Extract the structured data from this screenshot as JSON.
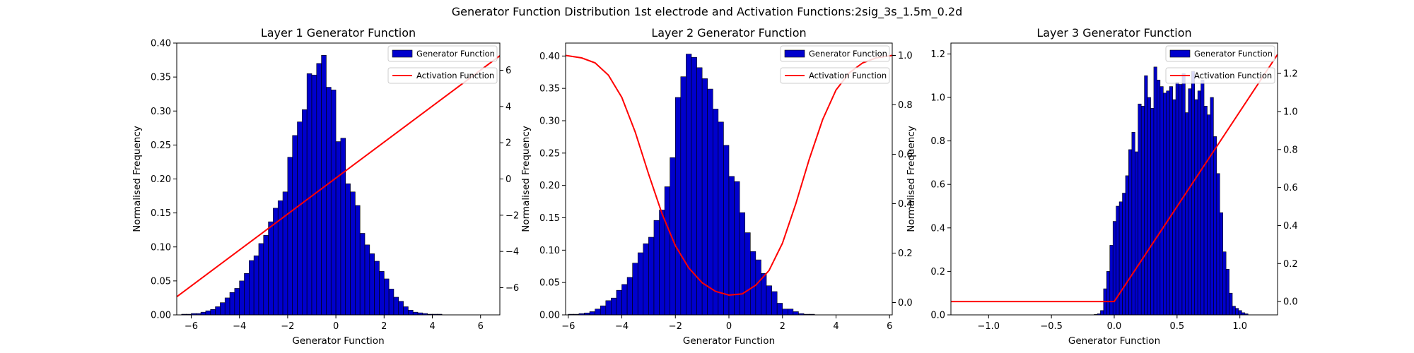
{
  "figure": {
    "suptitle": "Generator Function Distribution 1st electrode and Activation Functions:2sig_3s_1.5m_0.2d",
    "background": "#ffffff"
  },
  "colors": {
    "bars": "#0000cc",
    "bar_edge": "#000000",
    "activation": "#ff0000"
  },
  "chart_data": [
    {
      "type": "bar",
      "title": "Layer 1 Generator Function",
      "xlabel": "Generator Function",
      "ylabel": "Normalised Frequency",
      "xlim": [
        -6.6,
        6.8
      ],
      "ylim": [
        0,
        0.4
      ],
      "y2lim": [
        -7.5,
        7.5
      ],
      "xticks": [
        -6,
        -4,
        -2,
        0,
        2,
        4,
        6
      ],
      "xtick_labels": [
        "−6",
        "−4",
        "−2",
        "0",
        "2",
        "4",
        "6"
      ],
      "yticks": [
        0.0,
        0.05,
        0.1,
        0.15,
        0.2,
        0.25,
        0.3,
        0.35,
        0.4
      ],
      "ytick_labels": [
        "0.00",
        "0.05",
        "0.10",
        "0.15",
        "0.20",
        "0.25",
        "0.30",
        "0.35",
        "0.40"
      ],
      "y2ticks": [
        -6,
        -4,
        -2,
        0,
        2,
        4,
        6
      ],
      "y2tick_labels": [
        "−6",
        "−4",
        "−2",
        "0",
        "2",
        "4",
        "6"
      ],
      "legend": {
        "position": "top-right",
        "entries": [
          "Generator Function",
          "Activation Function"
        ]
      },
      "histogram": {
        "bin_start": -6.4,
        "bin_width": 0.2,
        "values": [
          0.001,
          0.001,
          0.002,
          0.002,
          0.004,
          0.006,
          0.008,
          0.012,
          0.018,
          0.025,
          0.033,
          0.039,
          0.05,
          0.061,
          0.08,
          0.087,
          0.105,
          0.117,
          0.137,
          0.157,
          0.168,
          0.181,
          0.232,
          0.264,
          0.284,
          0.302,
          0.355,
          0.353,
          0.37,
          0.382,
          0.335,
          0.331,
          0.255,
          0.26,
          0.193,
          0.181,
          0.161,
          0.12,
          0.103,
          0.09,
          0.079,
          0.064,
          0.053,
          0.038,
          0.026,
          0.02,
          0.012,
          0.007,
          0.004,
          0.003,
          0.002,
          0.001,
          0.001,
          0.001
        ]
      },
      "activation": {
        "kind": "linear",
        "x": [
          -6.6,
          6.8
        ],
        "y": [
          -6.5,
          6.8
        ]
      }
    },
    {
      "type": "bar",
      "title": "Layer 2 Generator Function",
      "xlabel": "Generator Function",
      "ylabel": "Normalised Frequency",
      "xlim": [
        -6.1,
        6.1
      ],
      "ylim": [
        0,
        0.42
      ],
      "y2lim": [
        -0.05,
        1.05
      ],
      "xticks": [
        -6,
        -4,
        -2,
        0,
        2,
        4,
        6
      ],
      "xtick_labels": [
        "−6",
        "−4",
        "−2",
        "0",
        "2",
        "4",
        "6"
      ],
      "yticks": [
        0.0,
        0.05,
        0.1,
        0.15,
        0.2,
        0.25,
        0.3,
        0.35,
        0.4
      ],
      "ytick_labels": [
        "0.00",
        "0.05",
        "0.10",
        "0.15",
        "0.20",
        "0.25",
        "0.30",
        "0.35",
        "0.40"
      ],
      "y2ticks": [
        0.0,
        0.2,
        0.4,
        0.6,
        0.8,
        1.0
      ],
      "y2tick_labels": [
        "0.0",
        "0.2",
        "0.4",
        "0.6",
        "0.8",
        "1.0"
      ],
      "legend": {
        "position": "top-right",
        "entries": [
          "Generator Function",
          "Activation Function"
        ]
      },
      "histogram": {
        "bin_start": -6.0,
        "bin_width": 0.2,
        "values": [
          0.001,
          0.001,
          0.002,
          0.003,
          0.005,
          0.009,
          0.014,
          0.022,
          0.026,
          0.038,
          0.047,
          0.058,
          0.08,
          0.096,
          0.11,
          0.12,
          0.146,
          0.162,
          0.198,
          0.243,
          0.336,
          0.368,
          0.403,
          0.398,
          0.382,
          0.365,
          0.349,
          0.318,
          0.298,
          0.262,
          0.214,
          0.206,
          0.158,
          0.127,
          0.098,
          0.085,
          0.064,
          0.045,
          0.036,
          0.018,
          0.009,
          0.009,
          0.005,
          0.002,
          0.001,
          0.001
        ]
      },
      "activation": {
        "kind": "curve",
        "x": [
          -6.1,
          -5.5,
          -5,
          -4.5,
          -4,
          -3.5,
          -3,
          -2.5,
          -2,
          -1.5,
          -1,
          -0.5,
          0,
          0.5,
          1,
          1.5,
          2,
          2.5,
          3,
          3.5,
          4,
          4.5,
          5,
          5.5,
          6.1
        ],
        "y": [
          1.0,
          0.99,
          0.97,
          0.92,
          0.83,
          0.69,
          0.52,
          0.36,
          0.23,
          0.14,
          0.08,
          0.045,
          0.03,
          0.035,
          0.07,
          0.13,
          0.24,
          0.4,
          0.58,
          0.74,
          0.86,
          0.93,
          0.97,
          0.99,
          1.0
        ]
      }
    },
    {
      "type": "bar",
      "title": "Layer 3 Generator Function",
      "xlabel": "Generator Function",
      "ylabel": "Normalised Frequency",
      "xlim": [
        -1.3,
        1.3
      ],
      "ylim": [
        0,
        1.25
      ],
      "y2lim": [
        -0.07,
        1.36
      ],
      "xticks": [
        -1.0,
        -0.5,
        0.0,
        0.5,
        1.0
      ],
      "xtick_labels": [
        "−1.0",
        "−0.5",
        "0.0",
        "0.5",
        "1.0"
      ],
      "yticks": [
        0.0,
        0.2,
        0.4,
        0.6,
        0.8,
        1.0,
        1.2
      ],
      "ytick_labels": [
        "0.0",
        "0.2",
        "0.4",
        "0.6",
        "0.8",
        "1.0",
        "1.2"
      ],
      "y2ticks": [
        0.0,
        0.2,
        0.4,
        0.6,
        0.8,
        1.0,
        1.2
      ],
      "y2tick_labels": [
        "0.0",
        "0.2",
        "0.4",
        "0.6",
        "0.8",
        "1.0",
        "1.2"
      ],
      "legend": {
        "position": "top-right",
        "entries": [
          "Generator Function",
          "Activation Function"
        ]
      },
      "histogram": {
        "bin_start": -0.16,
        "bin_width": 0.025,
        "values": [
          0.002,
          0.005,
          0.02,
          0.12,
          0.2,
          0.32,
          0.43,
          0.5,
          0.52,
          0.56,
          0.64,
          0.76,
          0.84,
          0.75,
          0.97,
          0.96,
          1.1,
          1.0,
          0.95,
          1.14,
          1.08,
          1.05,
          1.02,
          1.03,
          1.05,
          0.99,
          1.07,
          1.06,
          1.11,
          0.93,
          1.04,
          1.12,
          0.99,
          1.03,
          1.08,
          0.96,
          0.92,
          1.0,
          0.82,
          0.65,
          0.47,
          0.29,
          0.21,
          0.1,
          0.04,
          0.03,
          0.02,
          0.01,
          0.005
        ]
      },
      "activation": {
        "kind": "relu",
        "x": [
          -1.3,
          0.0,
          1.3
        ],
        "y": [
          0.0,
          0.0,
          1.3
        ]
      }
    }
  ]
}
